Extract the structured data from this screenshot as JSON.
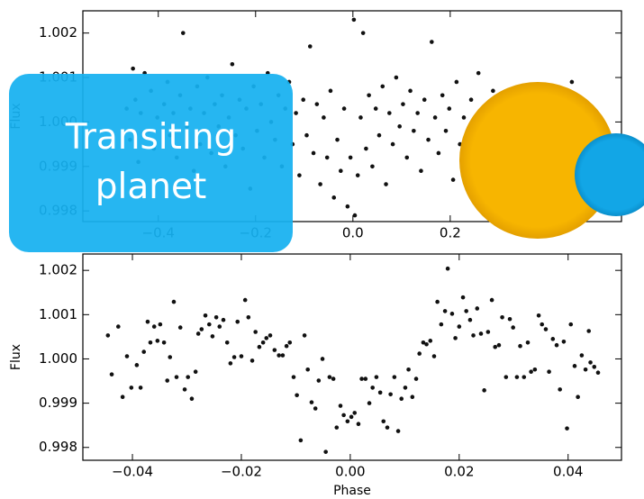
{
  "chart_data": [
    {
      "type": "scatter",
      "ylabel": "Flux",
      "color": "#111111",
      "xlim": [
        -0.555,
        0.552
      ],
      "ylim": [
        0.99776,
        1.0025
      ],
      "xticks": [
        {
          "value": -0.4,
          "label": "−0.4"
        },
        {
          "value": -0.2,
          "label": "−0.2"
        },
        {
          "value": 0,
          "label": "0.0"
        },
        0.2
      ],
      "yticks": [
        0.998,
        0.999,
        {
          "value": 1,
          "label": "1.000"
        },
        1.001,
        1.002
      ],
      "x": [
        -0.465,
        -0.458,
        -0.452,
        -0.447,
        -0.441,
        -0.436,
        -0.428,
        -0.421,
        -0.415,
        -0.409,
        -0.402,
        -0.395,
        -0.388,
        -0.381,
        -0.376,
        -0.369,
        -0.362,
        -0.355,
        -0.349,
        -0.341,
        -0.334,
        -0.327,
        -0.32,
        -0.314,
        -0.306,
        -0.299,
        -0.291,
        -0.284,
        -0.276,
        -0.269,
        -0.262,
        -0.255,
        -0.248,
        -0.241,
        -0.233,
        -0.226,
        -0.219,
        -0.211,
        -0.204,
        -0.197,
        -0.189,
        -0.182,
        -0.175,
        -0.168,
        -0.16,
        -0.153,
        -0.146,
        -0.139,
        -0.131,
        -0.124,
        -0.117,
        -0.11,
        -0.102,
        -0.095,
        -0.088,
        -0.081,
        -0.074,
        -0.067,
        -0.06,
        -0.053,
        -0.046,
        -0.039,
        -0.032,
        -0.025,
        -0.018,
        -0.011,
        -0.005,
        0.002,
        0.004,
        0.01,
        0.016,
        0.021,
        0.027,
        0.033,
        0.04,
        0.047,
        0.054,
        0.061,
        0.068,
        0.075,
        0.082,
        0.089,
        0.096,
        0.103,
        0.111,
        0.118,
        0.125,
        0.133,
        0.14,
        0.147,
        0.155,
        0.162,
        0.169,
        0.176,
        0.184,
        0.191,
        0.198,
        0.206,
        0.213,
        0.22,
        0.228,
        0.235,
        0.243,
        0.25,
        0.258,
        0.265,
        0.273,
        0.28,
        0.288,
        0.296,
        0.304,
        0.312,
        0.32,
        0.329,
        0.337,
        0.346,
        0.355,
        0.364,
        0.373,
        0.382,
        0.391,
        0.4,
        0.41,
        0.42,
        0.43,
        0.44,
        0.45,
        0.46
      ],
      "values": [
        1.0003,
        0.9996,
        1.0012,
        1.0005,
        0.9991,
        1.0002,
        1.0011,
        0.9998,
        1.0007,
        0.9994,
        1.0001,
        0.9987,
        1.0004,
        1.0009,
        0.9997,
        1.0002,
        0.9992,
        1.0006,
        1.002,
        0.9999,
        1.0003,
        0.9989,
        1.0008,
        0.9995,
        1.0002,
        1.001,
        0.9993,
        1.0004,
        0.9999,
        1.0006,
        0.999,
        1.0001,
        1.0013,
        0.9997,
        1.0005,
        0.9994,
        1.0003,
        0.9985,
        1.0008,
        0.9998,
        1.0004,
        0.9992,
        1.0011,
        1,
        0.9996,
        1.0006,
        0.999,
        1.0003,
        1.0009,
        0.9995,
        1.0002,
        0.9988,
        1.0005,
        0.9997,
        1.0017,
        0.9993,
        1.0004,
        0.9986,
        1.0001,
        0.9992,
        1.0007,
        0.9983,
        0.9996,
        0.9989,
        1.0003,
        0.9981,
        0.9992,
        1.0023,
        0.9979,
        0.9988,
        1.0001,
        1.002,
        0.9994,
        1.0006,
        0.999,
        1.0003,
        0.9997,
        1.0008,
        0.9986,
        1.0002,
        0.9995,
        1.001,
        0.9999,
        1.0004,
        0.9992,
        1.0007,
        0.9998,
        1.0002,
        0.9989,
        1.0005,
        0.9996,
        1.0018,
        1.0001,
        0.9993,
        1.0006,
        0.9998,
        1.0003,
        0.9987,
        1.0009,
        0.9995,
        1.0001,
        0.9991,
        1.0005,
        0.9998,
        1.0011,
        0.9994,
        1.0002,
        0.9997,
        1.0007,
        0.999,
        1.0003,
        0.9999,
        1.0005,
        0.9993,
        1.0001,
        0.9996,
        1.0008,
        0.9998,
        1.0003,
        0.9995,
        1.0006,
        0.9992,
        1.0001,
        0.9997,
        1.0004,
        0.9999,
        1.0009,
        1.0002
      ]
    },
    {
      "type": "scatter",
      "ylabel": "Flux",
      "xlabel": "Phase",
      "color": "#111111",
      "xlim": [
        -0.0491,
        0.0498
      ],
      "ylim": [
        0.99771,
        1.00237
      ],
      "xticks": [
        {
          "value": -0.04,
          "label": "−0.04"
        },
        {
          "value": -0.02,
          "label": "−0.02"
        },
        {
          "value": 0,
          "label": "0.00"
        },
        0.02,
        0.04
      ],
      "yticks": [
        0.998,
        0.999,
        {
          "value": 1,
          "label": "1.000"
        },
        1.001,
        1.002
      ],
      "x": [
        -0.0445,
        -0.0438,
        -0.0426,
        -0.0418,
        -0.041,
        -0.0402,
        -0.0392,
        -0.0385,
        -0.0379,
        -0.0372,
        -0.0367,
        -0.036,
        -0.0354,
        -0.0349,
        -0.0342,
        -0.0336,
        -0.0331,
        -0.0324,
        -0.0319,
        -0.0312,
        -0.0304,
        -0.0298,
        -0.0291,
        -0.0284,
        -0.0279,
        -0.0273,
        -0.0266,
        -0.0259,
        -0.0253,
        -0.0246,
        -0.024,
        -0.0233,
        -0.0226,
        -0.022,
        -0.0213,
        -0.0207,
        -0.02,
        -0.0193,
        -0.0187,
        -0.018,
        -0.0174,
        -0.0167,
        -0.016,
        -0.0154,
        -0.0147,
        -0.0139,
        -0.0131,
        -0.0124,
        -0.0117,
        -0.0111,
        -0.0104,
        -0.0098,
        -0.0091,
        -0.0084,
        -0.0078,
        -0.0071,
        -0.0064,
        -0.0058,
        -0.0051,
        -0.0045,
        -0.0038,
        -0.0031,
        -0.0025,
        -0.0018,
        -0.0012,
        -0.0005,
        0.0002,
        0.0008,
        0.0015,
        0.0021,
        0.0028,
        0.0035,
        0.0041,
        0.0048,
        0.0055,
        0.0061,
        0.0068,
        0.0074,
        0.0081,
        0.0088,
        0.0094,
        0.0101,
        0.0107,
        0.0114,
        0.0121,
        0.0127,
        0.0134,
        0.014,
        0.0147,
        0.0154,
        0.016,
        0.0167,
        0.0174,
        0.0179,
        0.0187,
        0.0193,
        0.02,
        0.0207,
        0.0213,
        0.022,
        0.0226,
        0.0233,
        0.024,
        0.0246,
        0.0253,
        0.026,
        0.0266,
        0.0273,
        0.0279,
        0.0286,
        0.0293,
        0.0299,
        0.0306,
        0.0312,
        0.0319,
        0.0326,
        0.0332,
        0.0339,
        0.0346,
        0.0352,
        0.0359,
        0.0365,
        0.0372,
        0.0379,
        0.0385,
        0.0392,
        0.0398,
        0.0405,
        0.0412,
        0.0418,
        0.0425,
        0.0432,
        0.0438,
        0.0441,
        0.0448,
        0.0455
      ],
      "values": [
        1.00053,
        0.99965,
        1.00073,
        0.99914,
        1.00006,
        0.99935,
        0.99986,
        0.99935,
        1.00016,
        1.00084,
        1.00037,
        1.00073,
        1.00041,
        1.00078,
        1.00037,
        0.99951,
        1.00004,
        1.00129,
        0.99959,
        1.00071,
        0.99931,
        0.99959,
        0.9991,
        0.99971,
        1.00057,
        1.00067,
        1.00098,
        1.00078,
        1.00051,
        1.00094,
        1.00073,
        1.00088,
        1.00037,
        0.9999,
        1.00004,
        1.00084,
        1.00006,
        1.00133,
        1.00094,
        0.99996,
        1.00061,
        1.00027,
        1.00037,
        1.00047,
        1.00053,
        1.0002,
        1.00008,
        1.00008,
        1.00029,
        1.00037,
        0.99959,
        0.99918,
        0.99816,
        1.00053,
        0.99976,
        0.99902,
        0.99888,
        0.99951,
        1.0,
        0.9979,
        0.99959,
        0.99955,
        0.99845,
        0.99894,
        0.99873,
        0.99859,
        0.99869,
        0.99878,
        0.99853,
        0.99955,
        0.99955,
        0.999,
        0.99935,
        0.99959,
        0.99924,
        0.99859,
        0.99845,
        0.9992,
        0.99959,
        0.99837,
        0.9991,
        0.99935,
        0.99976,
        0.99914,
        0.99955,
        1.00012,
        1.00037,
        1.00033,
        1.00041,
        1.00006,
        1.00129,
        1.00078,
        1.00108,
        1.00204,
        1.00102,
        1.00047,
        1.00073,
        1.00139,
        1.00108,
        1.00088,
        1.00053,
        1.00114,
        1.00057,
        0.99929,
        1.00061,
        1.00133,
        1.00027,
        1.00031,
        1.00094,
        0.99959,
        1.0009,
        1.00071,
        0.99959,
        1.00029,
        0.99959,
        1.00037,
        0.99971,
        0.99976,
        1.00098,
        1.00078,
        1.00067,
        0.99971,
        1.00045,
        1.00031,
        0.99931,
        1.00039,
        0.99843,
        1.00078,
        0.99984,
        0.99914,
        1.00008,
        0.99976,
        1.00063,
        0.99992,
        0.99982,
        0.99969
      ]
    }
  ],
  "badge": {
    "text": "Transiting planet"
  }
}
